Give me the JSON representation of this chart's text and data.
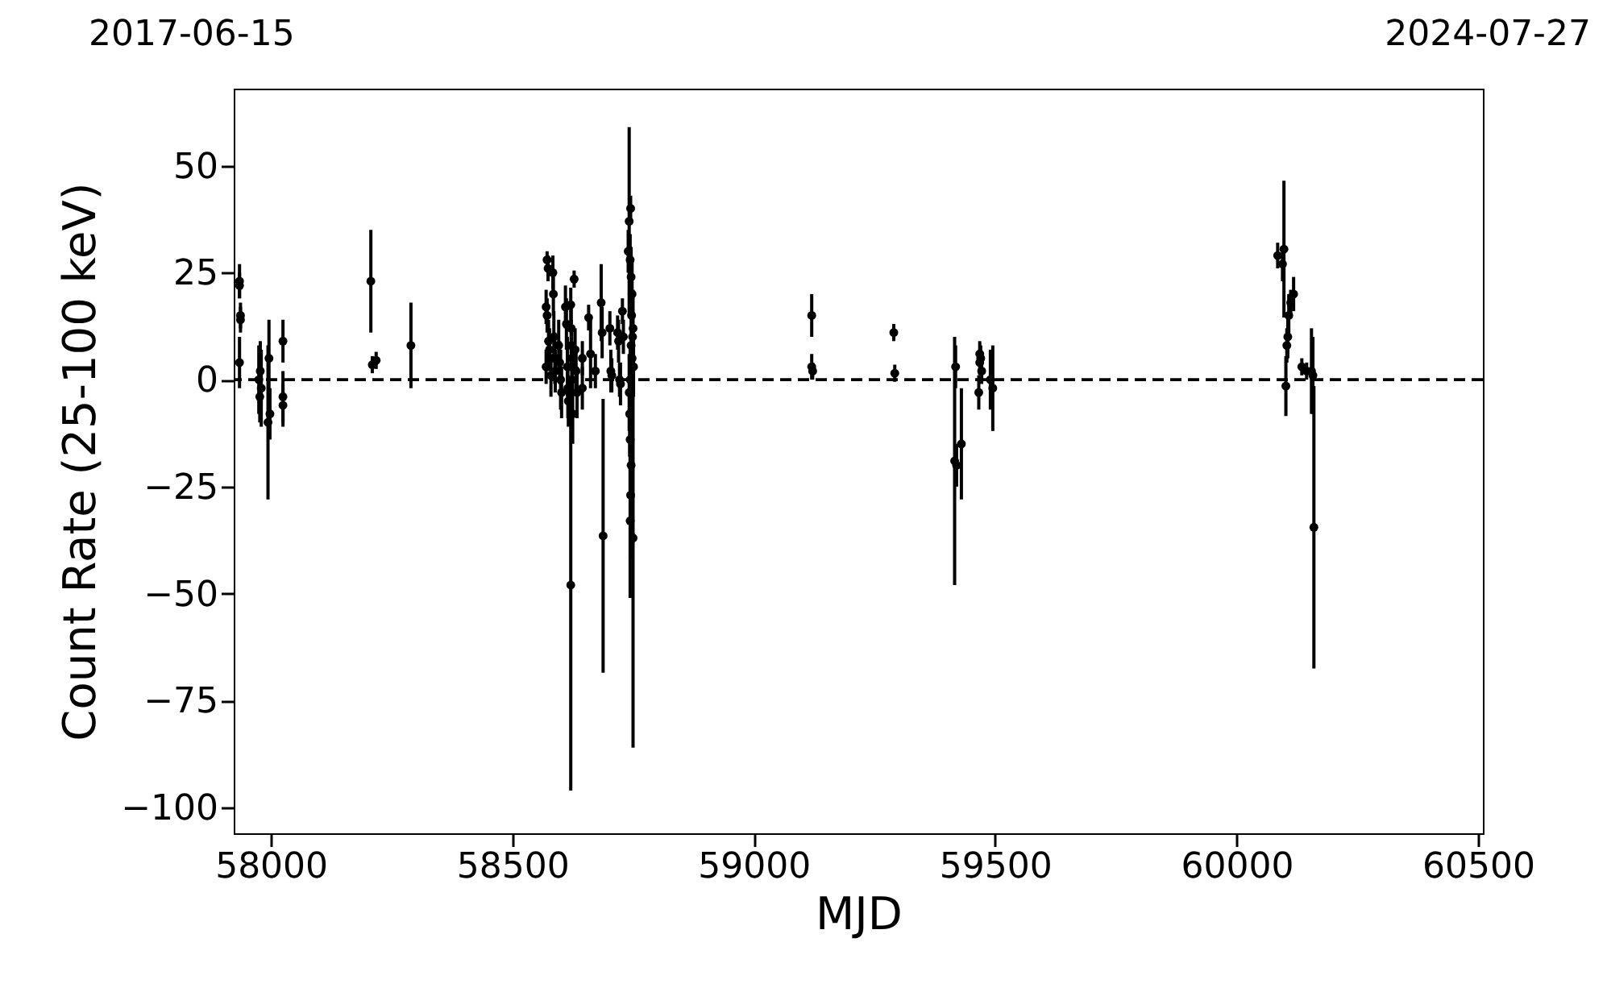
{
  "chart_data": {
    "type": "scatter",
    "xlabel": "MJD",
    "ylabel": "Count Rate (25-100 keV)",
    "xlim": [
      57923,
      60510
    ],
    "xticks": [
      58000,
      58500,
      59000,
      59500,
      60000,
      60500
    ],
    "ylim": [
      -106,
      68
    ],
    "yticks": [
      -100,
      -75,
      -50,
      -25,
      0,
      25,
      50
    ],
    "annotations": [
      "2017-06-15",
      "2024-07-27"
    ],
    "marker": "circle",
    "grid": false,
    "ref_lines": [
      {
        "axis": "y",
        "value": 0,
        "color": "#000000",
        "line_style": "dashed"
      }
    ],
    "series": [
      {
        "color": "#000000",
        "x": [
          57935,
          57935,
          57937,
          57937,
          57935,
          57975,
          57978,
          57980,
          57994,
          57996,
          57998,
          57977,
          58025,
          58025,
          58025,
          58207,
          58210,
          58218,
          58290,
          58572,
          58574,
          58570,
          58572,
          58575,
          58577,
          58570,
          58580,
          58584,
          58585,
          58586,
          58588,
          58589,
          58596,
          58598,
          58600,
          58602,
          58610,
          58612,
          58614,
          58615,
          58616,
          58621,
          58622,
          58622,
          58623,
          58624,
          58625,
          58621,
          58628,
          58630,
          58632,
          58634,
          58645,
          58645,
          58658,
          58662,
          58672,
          58684,
          58686,
          58688,
          58702,
          58704,
          58706,
          58718,
          58720,
          58722,
          58724,
          58728,
          58730,
          58745,
          58742,
          58740,
          58744,
          58746,
          58748,
          58747,
          58750,
          58749,
          58746,
          58748,
          58751,
          58744,
          58742,
          58743,
          58744,
          58746,
          58745,
          58744,
          58750,
          59120,
          59120,
          59122,
          59290,
          59292,
          59418,
          59416,
          59420,
          59430,
          59468,
          59470,
          59468,
          59472,
          59466,
          59490,
          59495,
          60085,
          60098,
          60095,
          60108,
          60106,
          60104,
          60102,
          60112,
          60118,
          60135,
          60145,
          60155,
          60158,
          60160
        ],
        "values": [
          23,
          22,
          15,
          14,
          4,
          0,
          2,
          -2,
          -10,
          5,
          -8,
          -4,
          9,
          -4,
          -6,
          23,
          3.5,
          4.5,
          8,
          28,
          26,
          17,
          15,
          9,
          7,
          3,
          1,
          25,
          20,
          10,
          5,
          2,
          8,
          4,
          0,
          -3,
          17,
          13,
          3,
          -2,
          -5,
          17.5,
          12,
          8,
          5,
          0,
          -8,
          -48,
          23.5,
          7,
          2,
          -3,
          5,
          -2,
          14.5,
          6,
          2,
          18,
          11,
          -36.5,
          12,
          2,
          1,
          11,
          9,
          0,
          -1,
          16,
          10,
          40,
          37,
          30,
          28,
          24,
          20,
          15,
          12,
          10,
          8,
          5,
          3,
          0,
          -3,
          -8,
          -14,
          -20,
          -27,
          -33,
          -37,
          15,
          3,
          2,
          11,
          1.5,
          3,
          -19,
          -20,
          -15,
          6,
          5,
          4,
          2,
          -3,
          0,
          -2,
          29,
          30.5,
          27,
          15,
          10,
          8,
          -1.5,
          18,
          20,
          3,
          2,
          2,
          1,
          -34.5
        ],
        "errors": [
          4,
          3,
          3,
          3,
          6,
          8,
          7,
          9,
          18,
          9,
          6,
          6,
          5,
          6,
          5,
          12,
          2,
          2,
          10,
          2,
          3,
          4,
          4,
          5,
          5,
          4,
          5,
          4,
          5,
          6,
          6,
          5,
          6,
          5,
          7,
          6,
          5,
          6,
          7,
          7,
          6,
          4,
          6,
          6,
          7,
          8,
          7,
          48,
          2,
          5,
          5,
          6,
          4,
          5,
          3,
          8,
          4,
          9,
          6,
          32,
          4,
          5,
          4,
          4,
          5,
          4,
          5,
          3,
          4,
          3,
          22,
          5,
          6,
          7,
          8,
          8,
          9,
          7,
          8,
          6,
          7,
          8,
          9,
          10,
          12,
          14,
          15,
          18,
          49,
          5,
          3,
          2,
          2,
          2,
          5,
          29,
          5,
          13,
          3,
          3,
          3,
          3,
          4,
          7,
          10,
          3,
          16,
          4,
          5,
          5,
          4,
          7,
          3,
          4,
          2,
          2,
          10,
          9,
          33
        ]
      }
    ]
  }
}
